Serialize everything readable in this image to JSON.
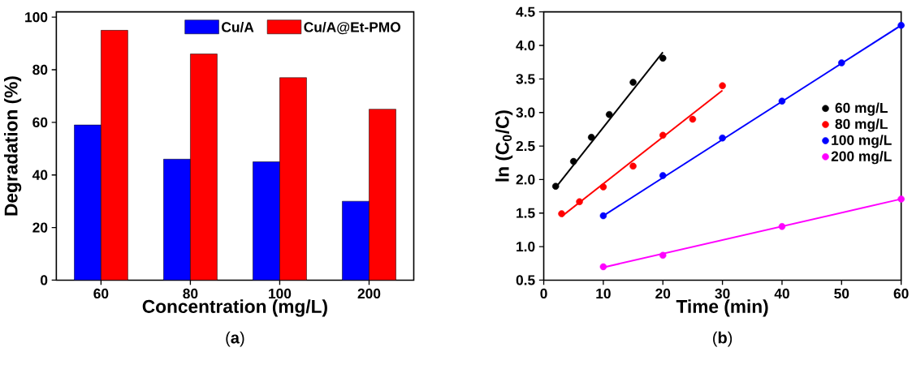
{
  "chart_data": [
    {
      "type": "bar",
      "xlabel": "Concentration (mg/L)",
      "ylabel": "Degradation (%)",
      "categories": [
        "60",
        "80",
        "100",
        "200"
      ],
      "series": [
        {
          "name": "Cu/A",
          "color": "#0000ff",
          "values": [
            59,
            46,
            45,
            30
          ]
        },
        {
          "name": "Cu/A@Et-PMO",
          "color": "#ff0000",
          "values": [
            95,
            86,
            77,
            65
          ]
        }
      ],
      "ylim": [
        0,
        102
      ],
      "yticks": [
        0,
        20,
        40,
        60,
        80,
        100
      ],
      "legend": "top right",
      "annotations": [
        "(**a**)"
      ]
    },
    {
      "type": "scatter",
      "xlabel": "Time (min)",
      "ylabel": "ln (C$_{0}$/C)",
      "series": [
        {
          "name": "60 mg/L",
          "color": "#000000",
          "x": [
            2,
            5,
            8,
            11,
            15,
            20
          ],
          "values": [
            1.9,
            2.27,
            2.63,
            2.97,
            3.45,
            3.81
          ],
          "marker": "circle"
        },
        {
          "name": "80 mg/L",
          "color": "#ff0000",
          "x": [
            3,
            6,
            10,
            15,
            20,
            25,
            30
          ],
          "values": [
            1.49,
            1.67,
            1.89,
            2.2,
            2.66,
            2.9,
            3.4
          ],
          "marker": "circle"
        },
        {
          "name": "100 mg/L",
          "color": "#0000ff",
          "x": [
            10,
            20,
            30,
            40,
            50,
            60
          ],
          "values": [
            1.46,
            2.06,
            2.62,
            3.17,
            3.74,
            4.3
          ],
          "marker": "circle"
        },
        {
          "name": "200 mg/L",
          "color": "#ff00ff",
          "x": [
            10,
            20,
            40,
            60
          ],
          "values": [
            0.7,
            0.87,
            1.3,
            1.71
          ],
          "marker": "circle"
        },
        {
          "type": "line",
          "color": "#000000",
          "x": [
            2,
            20
          ],
          "values": [
            1.88,
            3.9
          ],
          "marker": "none"
        },
        {
          "type": "line",
          "color": "#ff0000",
          "x": [
            3,
            30
          ],
          "values": [
            1.45,
            3.33
          ],
          "marker": "none"
        },
        {
          "type": "line",
          "color": "#0000ff",
          "x": [
            10,
            60
          ],
          "values": [
            1.46,
            4.3
          ],
          "marker": "none"
        },
        {
          "type": "line",
          "color": "#ff00ff",
          "x": [
            10,
            60
          ],
          "values": [
            0.69,
            1.71
          ],
          "marker": "none"
        }
      ],
      "xlim": [
        0,
        60
      ],
      "xticks": [
        0,
        10,
        20,
        30,
        40,
        50,
        60
      ],
      "ylim": [
        0.5,
        4.5
      ],
      "yticks": [
        0.5,
        {
          "value": 1,
          "label": "1.0"
        },
        1.5,
        {
          "value": 2,
          "label": "2.0"
        },
        2.5,
        {
          "value": 3,
          "label": "3.0"
        },
        3.5,
        {
          "value": 4,
          "label": "4.0"
        },
        4.5
      ],
      "legend": "right",
      "annotations": [
        "(**b**)"
      ]
    }
  ]
}
